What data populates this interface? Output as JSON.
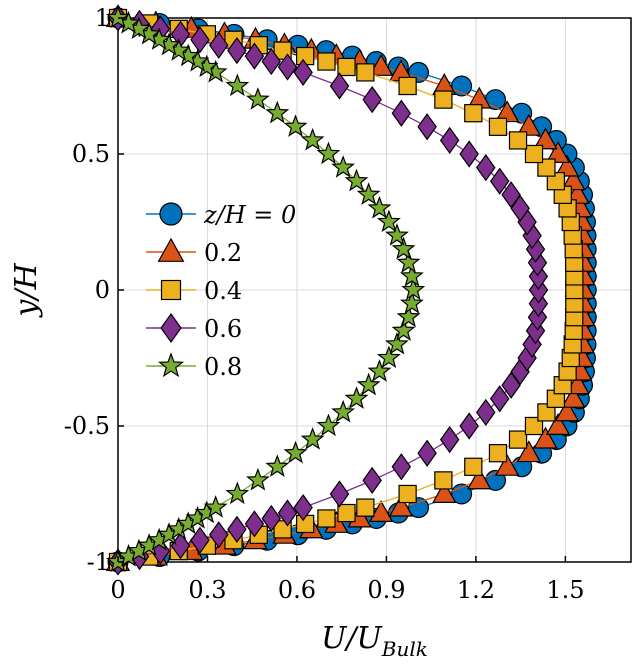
{
  "chart_data": {
    "type": "line",
    "xlabel": "U/U_Bulk",
    "ylabel": "y/H",
    "xlim": [
      0,
      1.72
    ],
    "ylim": [
      -1,
      1
    ],
    "xticks": [
      "0",
      "0.3",
      "0.6",
      "0.9",
      "1.2",
      "1.5"
    ],
    "yticks": [
      "-1",
      "-0.5",
      "0",
      "0.5",
      "1"
    ],
    "grid": true,
    "legend_position": "middle-left",
    "legend_title": "z/H = 0",
    "y_levels": [
      -1,
      -0.98,
      -0.96,
      -0.94,
      -0.92,
      -0.9,
      -0.88,
      -0.86,
      -0.84,
      -0.82,
      -0.8,
      -0.75,
      -0.7,
      -0.65,
      -0.6,
      -0.55,
      -0.5,
      -0.45,
      -0.4,
      -0.35,
      -0.3,
      -0.25,
      -0.2,
      -0.15,
      -0.1,
      -0.05,
      0,
      0.05,
      0.1,
      0.15,
      0.2,
      0.25,
      0.3,
      0.35,
      0.4,
      0.45,
      0.5,
      0.55,
      0.6,
      0.65,
      0.7,
      0.75,
      0.8,
      0.82,
      0.84,
      0.86,
      0.88,
      0.9,
      0.92,
      0.94,
      0.96,
      0.98,
      1
    ],
    "series": [
      {
        "name": "z/H = 0",
        "color": "#0072BD",
        "marker": "circle",
        "peak": 1.57,
        "exponent": 4.6
      },
      {
        "name": "0.2",
        "color": "#D95319",
        "marker": "triangle",
        "peak": 1.56,
        "exponent": 4.2
      },
      {
        "name": "0.4",
        "color": "#EDB120",
        "marker": "square",
        "peak": 1.53,
        "exponent": 3.5
      },
      {
        "name": "0.6",
        "color": "#7E2F8E",
        "marker": "diamond",
        "peak": 1.41,
        "exponent": 2.6
      },
      {
        "name": "0.8",
        "color": "#77AC30",
        "marker": "pentagram",
        "peak": 0.99,
        "exponent": 1.8
      }
    ]
  },
  "colors": {
    "axis": "#000000",
    "grid": "#d9d9d9"
  }
}
